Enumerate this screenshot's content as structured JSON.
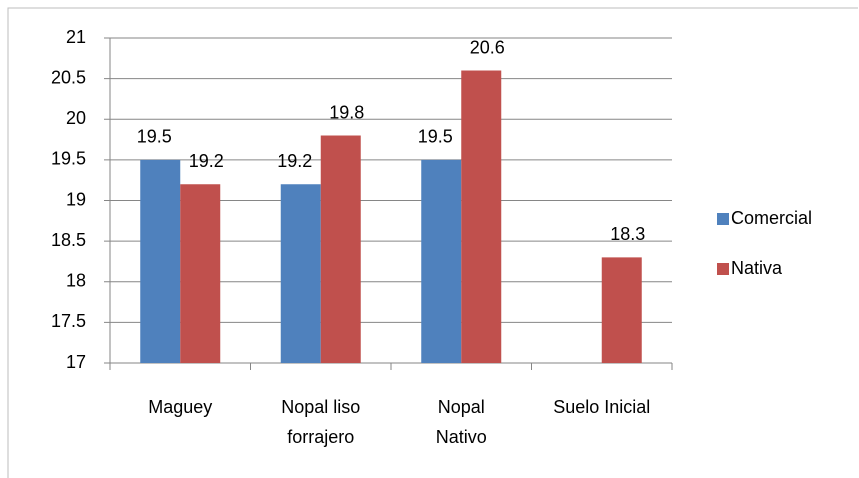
{
  "chart_data": {
    "type": "bar",
    "categories": [
      "Maguey",
      "Nopal liso forrajero",
      "Nopal Nativo",
      "Suelo Inicial"
    ],
    "series": [
      {
        "name": "Comercial",
        "color": "#4f81bd",
        "values": [
          19.5,
          19.2,
          19.5,
          null
        ]
      },
      {
        "name": "Nativa",
        "color": "#c0504d",
        "values": [
          19.2,
          19.8,
          20.6,
          18.3
        ]
      }
    ],
    "ylim": [
      17,
      21
    ],
    "yticks": [
      17,
      17.5,
      18,
      18.5,
      19,
      19.5,
      20,
      20.5,
      21
    ],
    "grid": true,
    "legend": "right"
  }
}
